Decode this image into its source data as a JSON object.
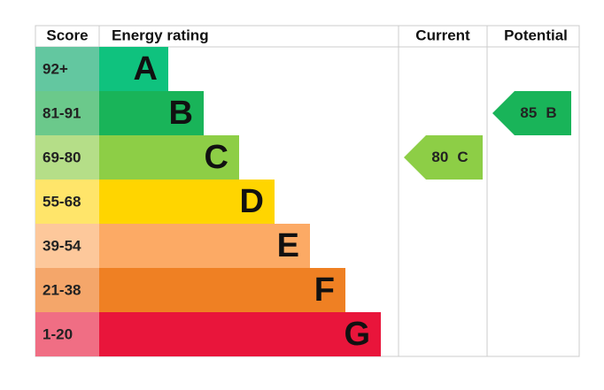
{
  "header": {
    "score": "Score",
    "rating": "Energy rating",
    "current": "Current",
    "potential": "Potential"
  },
  "bands": [
    {
      "score": "92+",
      "letter": "A",
      "color": "#0fc27e",
      "score_color": "#63c7a0"
    },
    {
      "score": "81-91",
      "letter": "B",
      "color": "#19b459",
      "score_color": "#6bc98b"
    },
    {
      "score": "69-80",
      "letter": "C",
      "color": "#8dce46",
      "score_color": "#b5de88"
    },
    {
      "score": "55-68",
      "letter": "D",
      "color": "#ffd500",
      "score_color": "#ffe56a"
    },
    {
      "score": "39-54",
      "letter": "E",
      "color": "#fcaa65",
      "score_color": "#fdc89b"
    },
    {
      "score": "21-38",
      "letter": "F",
      "color": "#ef8023",
      "score_color": "#f4a66a"
    },
    {
      "score": "1-20",
      "letter": "G",
      "color": "#e9153b",
      "score_color": "#f06e84"
    }
  ],
  "current": {
    "value": 80,
    "letter": "C",
    "band": 2
  },
  "potential": {
    "value": 85,
    "letter": "B",
    "band": 1
  }
}
